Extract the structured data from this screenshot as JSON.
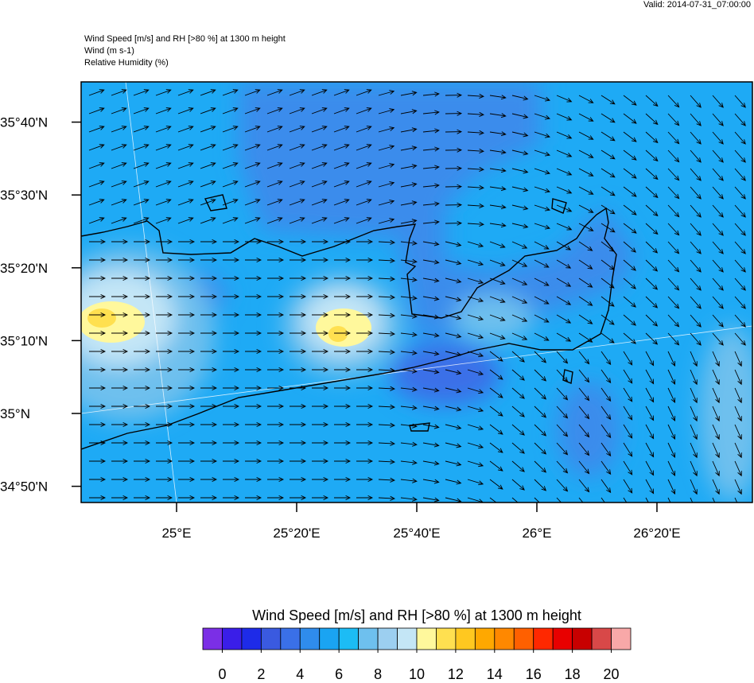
{
  "valid": "Valid: 2014-07-31_07:00:00",
  "header": [
    "Wind Speed [m/s] and RH [>80 %] at 1300 m height",
    "Wind   (m s-1)",
    "Relative Humidity   (%)"
  ],
  "lat_ticks": [
    {
      "value": 35.6667,
      "label": "35°40'N"
    },
    {
      "value": 35.5,
      "label": "35°30'N"
    },
    {
      "value": 35.3333,
      "label": "35°20'N"
    },
    {
      "value": 35.1667,
      "label": "35°10'N"
    },
    {
      "value": 35,
      "label": "35°N"
    },
    {
      "value": 34.8333,
      "label": "34°50'N"
    }
  ],
  "lon_ticks": [
    {
      "value": 25,
      "label": "25°E"
    },
    {
      "value": 25.3333,
      "label": "25°20'E"
    },
    {
      "value": 25.6667,
      "label": "25°40'E"
    },
    {
      "value": 26,
      "label": "26°E"
    },
    {
      "value": 26.3333,
      "label": "26°20'E"
    }
  ],
  "colorbar": {
    "title": "Wind Speed [m/s] and RH [>80 %] at 1300 m height",
    "range": [
      -1,
      21
    ],
    "ticks": [
      0,
      2,
      4,
      6,
      8,
      10,
      12,
      14,
      16,
      18,
      20
    ],
    "colors": [
      "#7b2fe6",
      "#3a1ee8",
      "#1e2be8",
      "#3a5ae0",
      "#3a70e8",
      "#2f8cec",
      "#1aa4f2",
      "#1cbcf5",
      "#6ec0ee",
      "#9ccff0",
      "#c4e6f6",
      "#fff89c",
      "#ffe050",
      "#ffc820",
      "#ffa800",
      "#ff8800",
      "#ff6000",
      "#ff2800",
      "#e80000",
      "#c80000",
      "#d84848",
      "#f8a8a8"
    ]
  }
}
